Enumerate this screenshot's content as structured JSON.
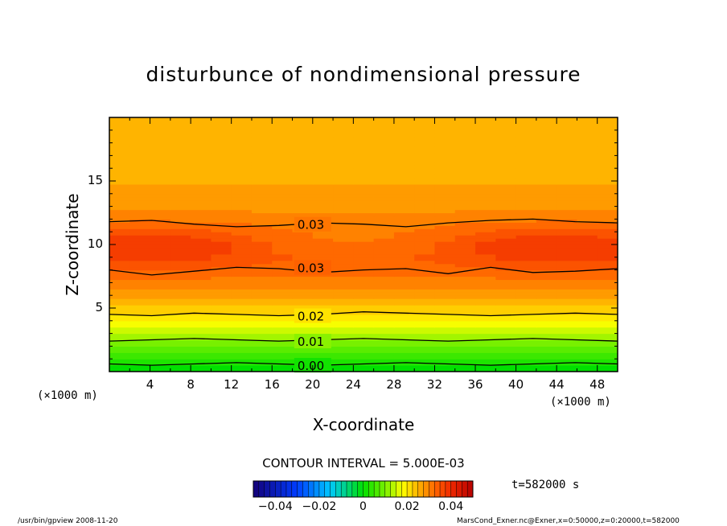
{
  "chart_data": {
    "type": "heatmap",
    "title": "disturbunce of nondimensional pressure",
    "xlabel": "X-coordinate",
    "ylabel": "Z-coordinate",
    "x_unit_left": "(×1000 m)",
    "x_unit_right": "(×1000 m)",
    "xlim": [
      0,
      50
    ],
    "ylim": [
      0,
      20
    ],
    "x_ticks": [
      "4",
      "8",
      "12",
      "16",
      "20",
      "24",
      "28",
      "32",
      "36",
      "40",
      "44",
      "48"
    ],
    "y_ticks": [
      "5",
      "10",
      "15"
    ],
    "contour_interval_label": "CONTOUR INTERVAL = 5.000E-03",
    "time_label": "t=582000 s",
    "colorbar_ticks": [
      "−0.04",
      "−0.02",
      "0",
      "0.02",
      "0.04"
    ],
    "colorbar_range": [
      -0.05,
      0.05
    ],
    "contour_labels": [
      {
        "text": "0.03",
        "x": 18.5,
        "z": 11.6
      },
      {
        "text": "0.03",
        "x": 18.5,
        "z": 8.2
      },
      {
        "text": "0.02",
        "x": 18.5,
        "z": 4.4
      },
      {
        "text": "0.01",
        "x": 18.5,
        "z": 2.4
      },
      {
        "text": "0.00",
        "x": 18.5,
        "z": 0.5
      }
    ],
    "vertical_profile": {
      "z": [
        0,
        1,
        2,
        3,
        4,
        5,
        6,
        7,
        8,
        9,
        10,
        11,
        12,
        13,
        14,
        15,
        16,
        17,
        18,
        19,
        20
      ],
      "value": [
        -0.001,
        0.004,
        0.009,
        0.014,
        0.019,
        0.023,
        0.027,
        0.03,
        0.033,
        0.035,
        0.035,
        0.033,
        0.03,
        0.028,
        0.027,
        0.026,
        0.025,
        0.025,
        0.025,
        0.025,
        0.025
      ]
    },
    "contour_lines": [
      {
        "level": "0.03",
        "z": [
          11.8,
          11.9,
          11.6,
          11.4,
          11.5,
          11.7,
          11.6,
          11.4,
          11.7,
          11.9,
          12.0,
          11.8,
          11.7
        ]
      },
      {
        "level": "0.03",
        "z": [
          8.0,
          7.6,
          7.9,
          8.2,
          8.1,
          7.8,
          8.0,
          8.1,
          7.7,
          8.2,
          7.8,
          7.9,
          8.1
        ]
      },
      {
        "level": "0.02",
        "z": [
          4.5,
          4.4,
          4.6,
          4.5,
          4.4,
          4.5,
          4.7,
          4.6,
          4.5,
          4.4,
          4.5,
          4.6,
          4.5
        ]
      },
      {
        "level": "0.01",
        "z": [
          2.4,
          2.5,
          2.6,
          2.5,
          2.4,
          2.5,
          2.6,
          2.5,
          2.4,
          2.5,
          2.6,
          2.5,
          2.4
        ]
      },
      {
        "level": "0.00",
        "z": [
          0.6,
          0.5,
          0.6,
          0.7,
          0.6,
          0.5,
          0.6,
          0.7,
          0.6,
          0.5,
          0.6,
          0.7,
          0.6
        ]
      }
    ]
  },
  "footer": {
    "left": "/usr/bin/gpview   2008-11-20",
    "right": "MarsCond_Exner.nc@Exner,x=0:50000,z=0:20000,t=582000"
  },
  "colors": {
    "orange_light": "#ffa500",
    "orange_mid": "#ff8c00",
    "orange_deep": "#ff5a00",
    "yellow": "#ffff00",
    "green": "#00e000"
  }
}
